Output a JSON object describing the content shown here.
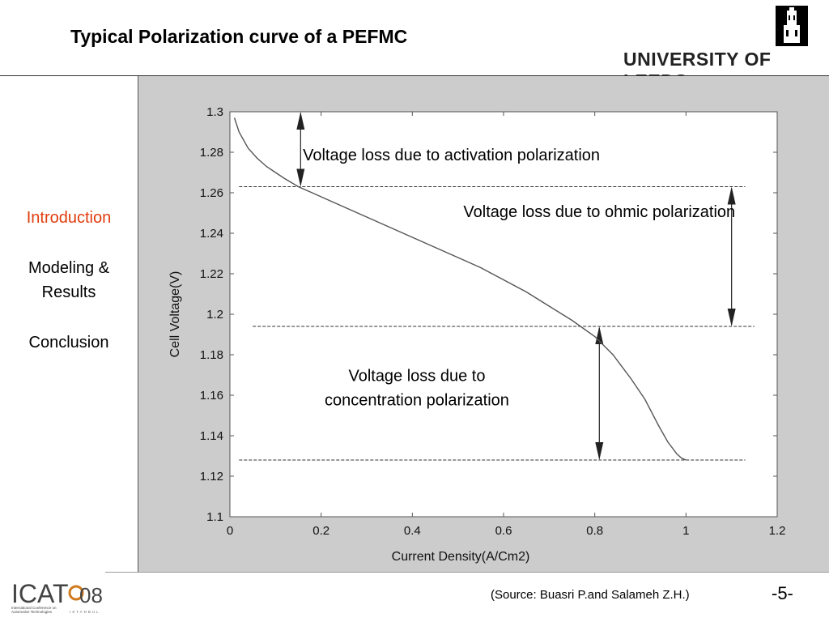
{
  "slide": {
    "title": "Typical Polarization curve of a PEFMC",
    "university": "UNIVERSITY OF LEEDS",
    "source": "(Source: Buasri P.and Salameh Z.H.)",
    "page_number": "-5-",
    "accent_color": "#e03c0e"
  },
  "nav": {
    "items": [
      {
        "label": "Introduction",
        "active": true
      },
      {
        "label": "Modeling &",
        "label2": "Results",
        "active": false
      },
      {
        "label": "Conclusion",
        "active": false
      }
    ]
  },
  "footer_logo": {
    "text": "ICAT",
    "year": "08",
    "caption1": "International Conference on",
    "caption2": "Automotive Technologies",
    "caption3": "ISTANBUL"
  },
  "chart_data": {
    "type": "line",
    "title": "",
    "xlabel": "Current Density(A/Cm2)",
    "ylabel": "Cell Voltage(V)",
    "xlim": [
      0,
      1.2
    ],
    "ylim": [
      1.1,
      1.3
    ],
    "xticks": [
      "0",
      "0.2",
      "0.4",
      "0.6",
      "0.8",
      "1",
      "1.2"
    ],
    "yticks": [
      "1.1",
      "1.12",
      "1.14",
      "1.16",
      "1.18",
      "1.2",
      "1.22",
      "1.24",
      "1.26",
      "1.28",
      "1.3"
    ],
    "grid": false,
    "series": [
      {
        "x": [
          0.01,
          0.02,
          0.04,
          0.06,
          0.08,
          0.1,
          0.12,
          0.15,
          0.2,
          0.25,
          0.3,
          0.35,
          0.4,
          0.45,
          0.5,
          0.55,
          0.6,
          0.65,
          0.7,
          0.75,
          0.8,
          0.84,
          0.88,
          0.91,
          0.94,
          0.96,
          0.98,
          0.99,
          1.0
        ],
        "y": [
          1.297,
          1.29,
          1.282,
          1.277,
          1.273,
          1.27,
          1.267,
          1.263,
          1.258,
          1.253,
          1.248,
          1.243,
          1.238,
          1.233,
          1.228,
          1.223,
          1.217,
          1.211,
          1.204,
          1.197,
          1.189,
          1.18,
          1.168,
          1.158,
          1.145,
          1.137,
          1.131,
          1.129,
          1.128
        ]
      }
    ],
    "reference_lines": [
      {
        "y": 1.263,
        "x_from": 0.02,
        "x_to": 1.13
      },
      {
        "y": 1.194,
        "x_from": 0.05,
        "x_to": 1.15
      },
      {
        "y": 1.128,
        "x_from": 0.02,
        "x_to": 1.13
      }
    ],
    "arrows": [
      {
        "x": 0.155,
        "y_top": 1.3,
        "y_bottom": 1.263
      },
      {
        "x": 1.1,
        "y_top": 1.263,
        "y_bottom": 1.194
      },
      {
        "x": 0.81,
        "y_top": 1.194,
        "y_bottom": 1.128
      }
    ],
    "annotations": [
      {
        "text": "Voltage loss due to activation polarization",
        "x": 0.16,
        "y": 1.276,
        "align": "start"
      },
      {
        "text": "Voltage loss due to ohmic polarization",
        "x": 0.81,
        "y": 1.248,
        "align": "middle"
      },
      {
        "text": "Voltage loss due to",
        "x": 0.41,
        "y": 1.167,
        "align": "middle"
      },
      {
        "text": "concentration polarization",
        "x": 0.41,
        "y": 1.155,
        "align": "middle"
      }
    ]
  }
}
